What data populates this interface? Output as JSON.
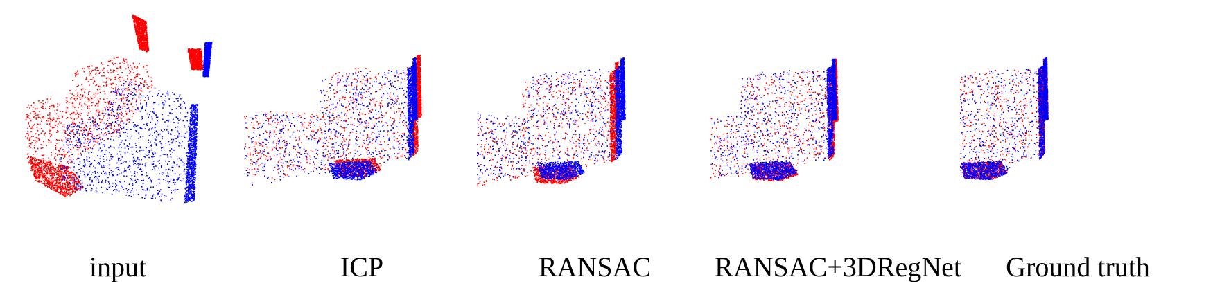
{
  "colors": {
    "source": "#ff0000",
    "target": "#0000ff",
    "background": "#ffffff"
  },
  "panels": [
    {
      "id": "input",
      "caption": "input"
    },
    {
      "id": "icp",
      "caption": "ICP"
    },
    {
      "id": "ransac",
      "caption": "RANSAC"
    },
    {
      "id": "ransac-3dregnet",
      "caption": "RANSAC+3DRegNet"
    },
    {
      "id": "ground-truth",
      "caption": "Ground truth"
    }
  ]
}
